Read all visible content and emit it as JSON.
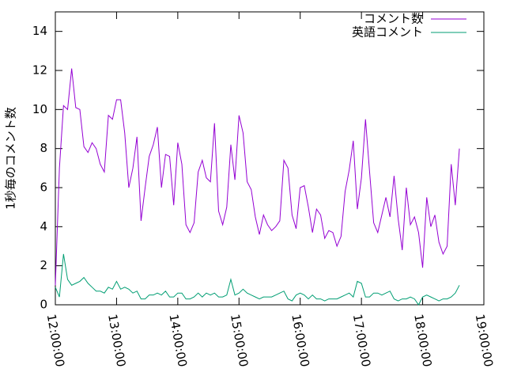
{
  "chart_data": {
    "type": "line",
    "y_label": "1秒毎のコメント数",
    "x": [
      "12:00:00",
      "12:04:00",
      "12:08:00",
      "12:12:00",
      "12:16:00",
      "12:20:00",
      "12:24:00",
      "12:28:00",
      "12:32:00",
      "12:36:00",
      "12:40:00",
      "12:44:00",
      "12:48:00",
      "12:52:00",
      "12:56:00",
      "13:00:00",
      "13:04:00",
      "13:08:00",
      "13:12:00",
      "13:16:00",
      "13:20:00",
      "13:24:00",
      "13:28:00",
      "13:32:00",
      "13:36:00",
      "13:40:00",
      "13:44:00",
      "13:48:00",
      "13:52:00",
      "13:56:00",
      "14:00:00",
      "14:04:00",
      "14:08:00",
      "14:12:00",
      "14:16:00",
      "14:20:00",
      "14:24:00",
      "14:28:00",
      "14:32:00",
      "14:36:00",
      "14:40:00",
      "14:44:00",
      "14:48:00",
      "14:52:00",
      "14:56:00",
      "15:00:00",
      "15:04:00",
      "15:08:00",
      "15:12:00",
      "15:16:00",
      "15:20:00",
      "15:24:00",
      "15:28:00",
      "15:32:00",
      "15:36:00",
      "15:40:00",
      "15:44:00",
      "15:48:00",
      "15:52:00",
      "15:56:00",
      "16:00:00",
      "16:04:00",
      "16:08:00",
      "16:12:00",
      "16:16:00",
      "16:20:00",
      "16:24:00",
      "16:28:00",
      "16:32:00",
      "16:36:00",
      "16:40:00",
      "16:44:00",
      "16:48:00",
      "16:52:00",
      "16:56:00",
      "17:00:00",
      "17:04:00",
      "17:08:00",
      "17:12:00",
      "17:16:00",
      "17:20:00",
      "17:24:00",
      "17:28:00",
      "17:32:00",
      "17:36:00",
      "17:40:00",
      "17:44:00",
      "17:48:00",
      "17:52:00",
      "17:56:00",
      "18:00:00",
      "18:04:00",
      "18:08:00",
      "18:12:00",
      "18:16:00",
      "18:20:00",
      "18:24:00",
      "18:28:00",
      "18:32:00",
      "18:36:00"
    ],
    "series": [
      {
        "name": "コメント数",
        "color": "#9400d3",
        "values": [
          1.0,
          7,
          10.2,
          10.0,
          12.1,
          10.1,
          10.0,
          8.1,
          7.8,
          8.3,
          8.0,
          7.2,
          6.8,
          9.7,
          9.5,
          10.5,
          10.5,
          8.8,
          6.0,
          7.0,
          8.6,
          4.3,
          6.0,
          7.6,
          8.2,
          9.1,
          6.0,
          7.7,
          7.6,
          5.1,
          8.3,
          7.2,
          4.1,
          3.7,
          4.2,
          6.8,
          7.4,
          6.5,
          6.3,
          9.3,
          4.8,
          4.1,
          5.0,
          8.2,
          6.4,
          9.7,
          8.8,
          6.3,
          5.9,
          4.5,
          3.6,
          4.6,
          4.1,
          3.8,
          4.0,
          4.3,
          7.4,
          7.0,
          4.6,
          3.9,
          6.0,
          6.1,
          5.0,
          3.7,
          4.9,
          4.6,
          3.4,
          3.8,
          3.7,
          3.0,
          3.5,
          5.8,
          6.9,
          8.4,
          4.9,
          6.5,
          9.5,
          6.8,
          4.2,
          3.7,
          4.6,
          5.5,
          4.5,
          6.6,
          4.4,
          2.8,
          6.0,
          4.1,
          4.5,
          3.7,
          1.9,
          5.5,
          4.0,
          4.6,
          3.2,
          2.6,
          3.0,
          7.2,
          5.1,
          8.0
        ]
      },
      {
        "name": "英語コメント",
        "color": "#009e73",
        "values": [
          0.9,
          0.4,
          2.6,
          1.3,
          1.0,
          1.1,
          1.2,
          1.4,
          1.1,
          0.9,
          0.7,
          0.7,
          0.6,
          0.9,
          0.8,
          1.2,
          0.8,
          0.9,
          0.8,
          0.6,
          0.7,
          0.3,
          0.3,
          0.5,
          0.5,
          0.6,
          0.5,
          0.7,
          0.4,
          0.4,
          0.6,
          0.6,
          0.3,
          0.3,
          0.4,
          0.6,
          0.4,
          0.6,
          0.5,
          0.6,
          0.4,
          0.4,
          0.5,
          1.3,
          0.5,
          0.6,
          0.8,
          0.6,
          0.5,
          0.4,
          0.3,
          0.4,
          0.4,
          0.4,
          0.5,
          0.6,
          0.7,
          0.3,
          0.2,
          0.5,
          0.6,
          0.5,
          0.3,
          0.5,
          0.3,
          0.3,
          0.2,
          0.3,
          0.3,
          0.3,
          0.4,
          0.5,
          0.6,
          0.4,
          1.2,
          1.1,
          0.4,
          0.4,
          0.6,
          0.6,
          0.5,
          0.6,
          0.7,
          0.3,
          0.2,
          0.3,
          0.3,
          0.4,
          0.3,
          0.0,
          0.4,
          0.5,
          0.4,
          0.3,
          0.2,
          0.3,
          0.3,
          0.4,
          0.6,
          1.0
        ]
      }
    ],
    "xlim": [
      "12:00:00",
      "19:00:00"
    ],
    "xticks": [
      "12:00:00",
      "13:00:00",
      "14:00:00",
      "15:00:00",
      "16:00:00",
      "17:00:00",
      "18:00:00",
      "19:00:00"
    ],
    "ylim": [
      0,
      15
    ],
    "yticks": [
      0,
      2,
      4,
      6,
      8,
      10,
      12,
      14
    ],
    "grid": false,
    "legend": "top-right"
  }
}
